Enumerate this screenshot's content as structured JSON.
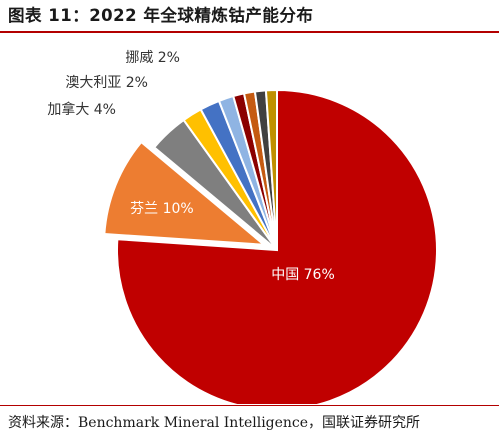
{
  "title": "图表 11：2022 年全球精炼钴产能分布",
  "source": "资料来源：Benchmark Mineral Intelligence，国联证券研究所",
  "chart_data": {
    "type": "pie",
    "slices": [
      {
        "label": "中国",
        "value_label": "76%",
        "value": 76,
        "color": "#c00000",
        "label_pos": "inside",
        "explode": false
      },
      {
        "label": "芬兰",
        "value_label": "10%",
        "value": 10,
        "color": "#ed7d31",
        "label_pos": "inside",
        "explode": true
      },
      {
        "label": "加拿大",
        "value_label": "4%",
        "value": 4,
        "color": "#7f7f7f",
        "label_pos": "outside",
        "explode": false
      },
      {
        "label": "澳大利亚",
        "value_label": "2%",
        "value": 2,
        "color": "#ffc000",
        "label_pos": "outside",
        "explode": false
      },
      {
        "label": "挪威",
        "value_label": "2%",
        "value": 2,
        "color": "#4472c4",
        "label_pos": "outside",
        "explode": false
      },
      {
        "label": "",
        "value_label": "",
        "value": 1.5,
        "color": "#8fb4e3",
        "label_pos": "none",
        "explode": false
      },
      {
        "label": "",
        "value_label": "",
        "value": 1.1,
        "color": "#8b0000",
        "label_pos": "none",
        "explode": false
      },
      {
        "label": "",
        "value_label": "",
        "value": 1.1,
        "color": "#c55a11",
        "label_pos": "none",
        "explode": false
      },
      {
        "label": "",
        "value_label": "",
        "value": 1.1,
        "color": "#404040",
        "label_pos": "none",
        "explode": false
      },
      {
        "label": "",
        "value_label": "",
        "value": 1.1,
        "color": "#bf9000",
        "label_pos": "none",
        "explode": false
      }
    ]
  }
}
